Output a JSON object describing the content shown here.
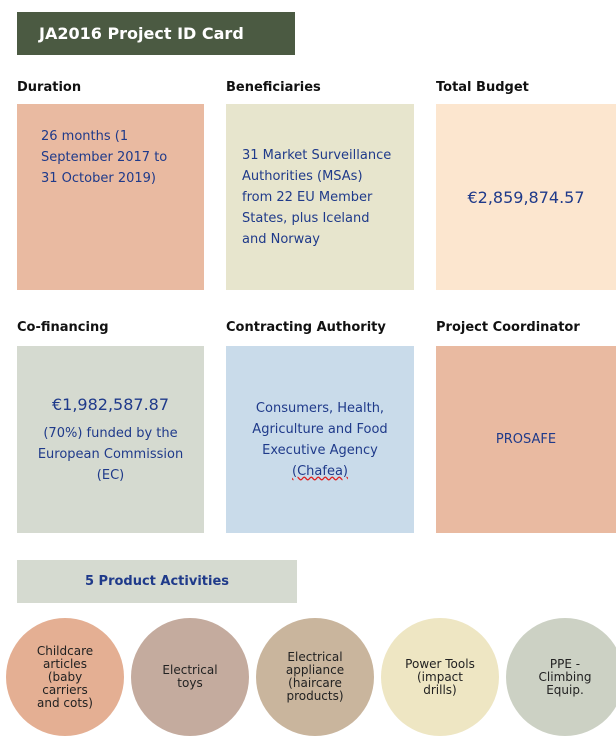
{
  "header": {
    "title": "JA2016 Project ID Card"
  },
  "cards": [
    {
      "heading": "Duration",
      "text": "26 months (1 September 2017 to 31 October 2019)"
    },
    {
      "heading": "Beneficiaries",
      "text": "31 Market Surveillance Authorities (MSAs) from 22 EU Member States, plus Iceland and Norway"
    },
    {
      "heading": "Total Budget",
      "text": "€2,859,874.57"
    },
    {
      "heading": "Co-financing",
      "amount": "€1,982,587.87",
      "text": "(70%) funded by the European Commission (EC)"
    },
    {
      "heading": "Contracting Authority",
      "text": "Consumers, Health, Agriculture and Food Executive Agency",
      "highlight": "(Chafea)"
    },
    {
      "heading": "Project Coordinator",
      "text": "PROSAFE"
    }
  ],
  "activities": {
    "title": "5 Product Activities",
    "items": [
      "Childcare articles (baby carriers and cots)",
      "Electrical toys",
      "Electrical appliance (haircare products)",
      "Power Tools (impact drills)",
      "PPE - Climbing Equip."
    ]
  }
}
